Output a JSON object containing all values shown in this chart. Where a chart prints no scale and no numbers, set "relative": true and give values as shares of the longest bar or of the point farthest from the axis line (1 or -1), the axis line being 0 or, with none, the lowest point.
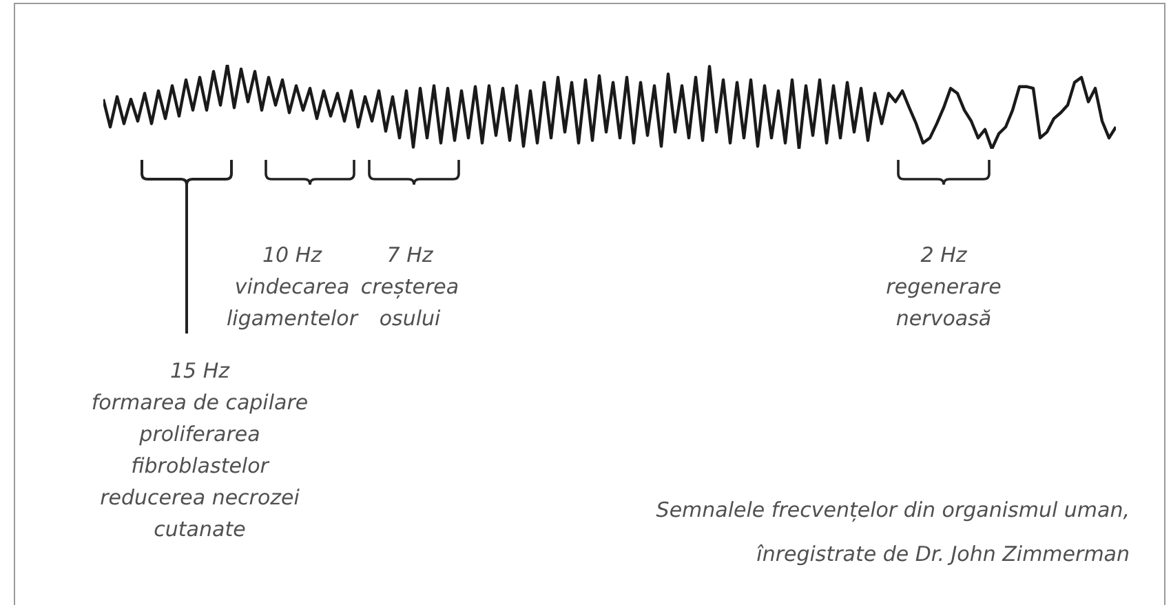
{
  "chart_data": {
    "type": "line",
    "relative": true,
    "marker": "none",
    "line_style": "solid",
    "color": "#1a1a1a",
    "categories": [
      null,
      null,
      null,
      null,
      null,
      null,
      null,
      null,
      null,
      null,
      null,
      null,
      null,
      null,
      null,
      null,
      null,
      null,
      null,
      null,
      null,
      null,
      null,
      null,
      null,
      null,
      null,
      null,
      null,
      null,
      null,
      null,
      null,
      null,
      null,
      null,
      null,
      null,
      null,
      null,
      null,
      null,
      null,
      null,
      null,
      null,
      null,
      null,
      null,
      null,
      null,
      null,
      null,
      null,
      null,
      null,
      null,
      null,
      null,
      null,
      null,
      null,
      null,
      null,
      null,
      null,
      null,
      null,
      null,
      null,
      null,
      null,
      null,
      null,
      null,
      null,
      null,
      null,
      null,
      null,
      null,
      null,
      null,
      null,
      null,
      null,
      null,
      null,
      null,
      null,
      null,
      null,
      null,
      null,
      null,
      null,
      null,
      null,
      null,
      null,
      null,
      null,
      null,
      null,
      null,
      null,
      null,
      null,
      null,
      null,
      null,
      null,
      null,
      null,
      null,
      null,
      null,
      null,
      null,
      null,
      null,
      null,
      null,
      null,
      null,
      null,
      null,
      null,
      null,
      null,
      null,
      null,
      null,
      null,
      null,
      null,
      null,
      null,
      null,
      null,
      null,
      null,
      null,
      null,
      null,
      null,
      null,
      null
    ],
    "values": [
      0.59,
      0.26,
      0.62,
      0.3,
      0.59,
      0.33,
      0.66,
      0.3,
      0.69,
      0.36,
      0.75,
      0.39,
      0.82,
      0.46,
      0.85,
      0.46,
      0.92,
      0.52,
      1,
      0.49,
      0.95,
      0.56,
      0.92,
      0.46,
      0.85,
      0.52,
      0.82,
      0.43,
      0.75,
      0.46,
      0.72,
      0.36,
      0.69,
      0.39,
      0.66,
      0.33,
      0.69,
      0.26,
      0.62,
      0.33,
      0.69,
      0.21,
      0.62,
      0.13,
      0.69,
      0.02,
      0.72,
      0.13,
      0.75,
      0.07,
      0.72,
      0.1,
      0.69,
      0.13,
      0.74,
      0.07,
      0.75,
      0.16,
      0.72,
      0.1,
      0.75,
      0.03,
      0.69,
      0.07,
      0.79,
      0.13,
      0.85,
      0.2,
      0.79,
      0.07,
      0.82,
      0.1,
      0.87,
      0.2,
      0.79,
      0.13,
      0.85,
      0.07,
      0.79,
      0.16,
      0.75,
      0.03,
      0.89,
      0.2,
      0.75,
      0.13,
      0.85,
      0.1,
      0.98,
      0.2,
      0.82,
      0.07,
      0.79,
      0.13,
      0.82,
      0.03,
      0.75,
      0.13,
      0.69,
      0.07,
      0.82,
      0,
      0.75,
      0.16,
      0.82,
      0.07,
      0.75,
      0.13,
      0.79,
      0.2,
      0.72,
      0.1,
      0.66,
      0.3,
      0.66,
      0.56,
      0.69,
      0.49,
      0.3,
      0.07,
      0.13,
      0.3,
      0.49,
      0.72,
      0.66,
      0.46,
      0.33,
      0.13,
      0.23,
      0,
      0.18,
      0.26,
      0.46,
      0.74,
      0.74,
      0.72,
      0.13,
      0.2,
      0.36,
      0.43,
      0.52,
      0.79,
      0.85,
      0.56,
      0.72,
      0.33,
      0.13,
      0.26
    ],
    "annotations": [
      "15 Hz\nformarea de capilare\nproliferarea\nfibroblastelor\nreducerea necrozei\ncutanate",
      "10 Hz\nvindecarea\nligamentelor",
      "7 Hz\ncreșterea\nosului",
      "2 Hz\nregenerare\nnervoasă",
      "Semnalele frecvențelor din organismul uman,\nînregistrate de Dr. John Zimmerman"
    ]
  }
}
